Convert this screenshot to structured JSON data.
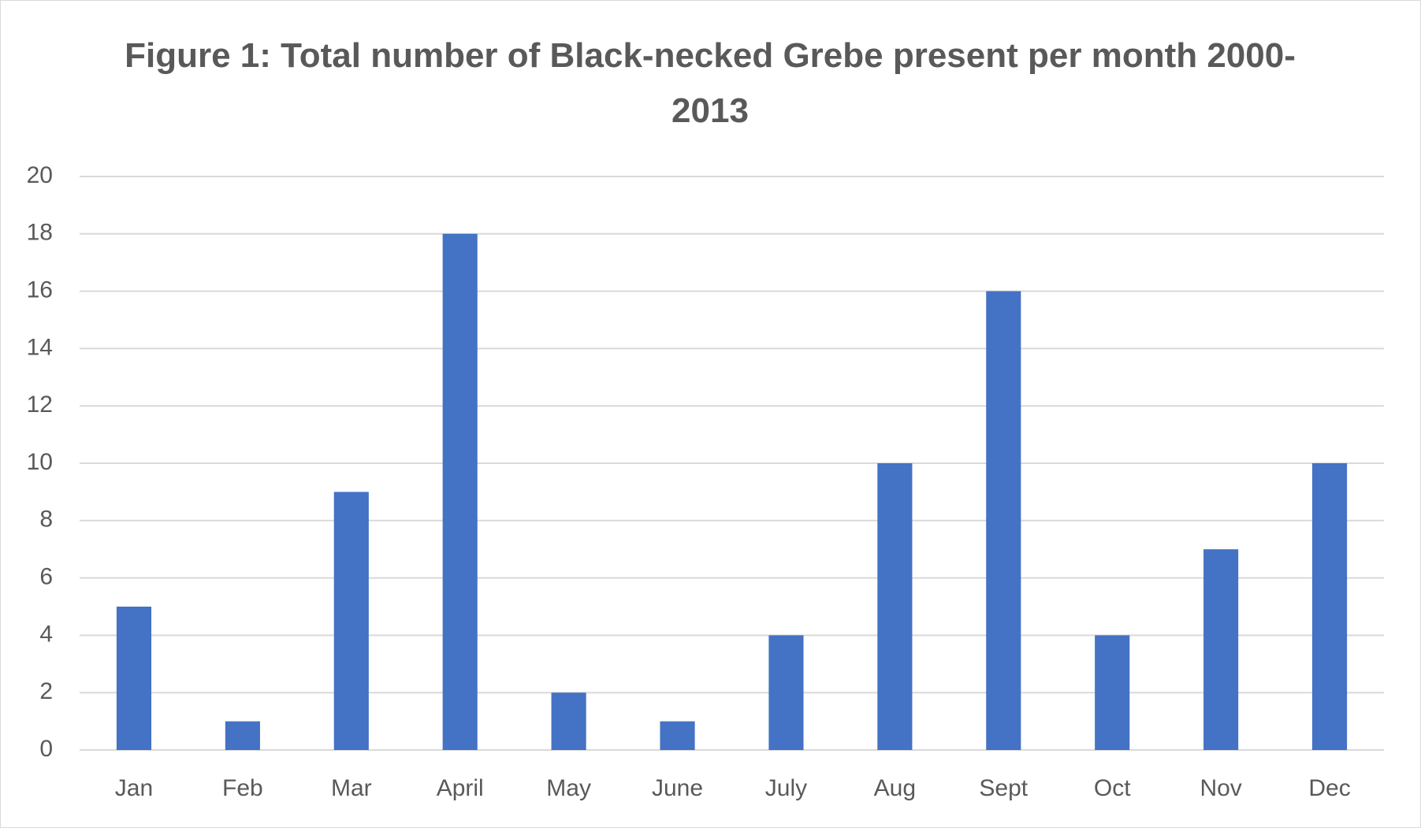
{
  "chart_data": {
    "type": "bar",
    "title": "Figure 1: Total number of Black-necked Grebe present per month 2000-2013",
    "categories": [
      "Jan",
      "Feb",
      "Mar",
      "April",
      "May",
      "June",
      "July",
      "Aug",
      "Sept",
      "Oct",
      "Nov",
      "Dec"
    ],
    "values": [
      5,
      1,
      9,
      18,
      2,
      1,
      4,
      10,
      16,
      4,
      7,
      10
    ],
    "color": "#4472c4",
    "ylim": [
      0,
      20
    ],
    "yticks": [
      0,
      2,
      4,
      6,
      8,
      10,
      12,
      14,
      16,
      18,
      20
    ],
    "grid": true
  }
}
